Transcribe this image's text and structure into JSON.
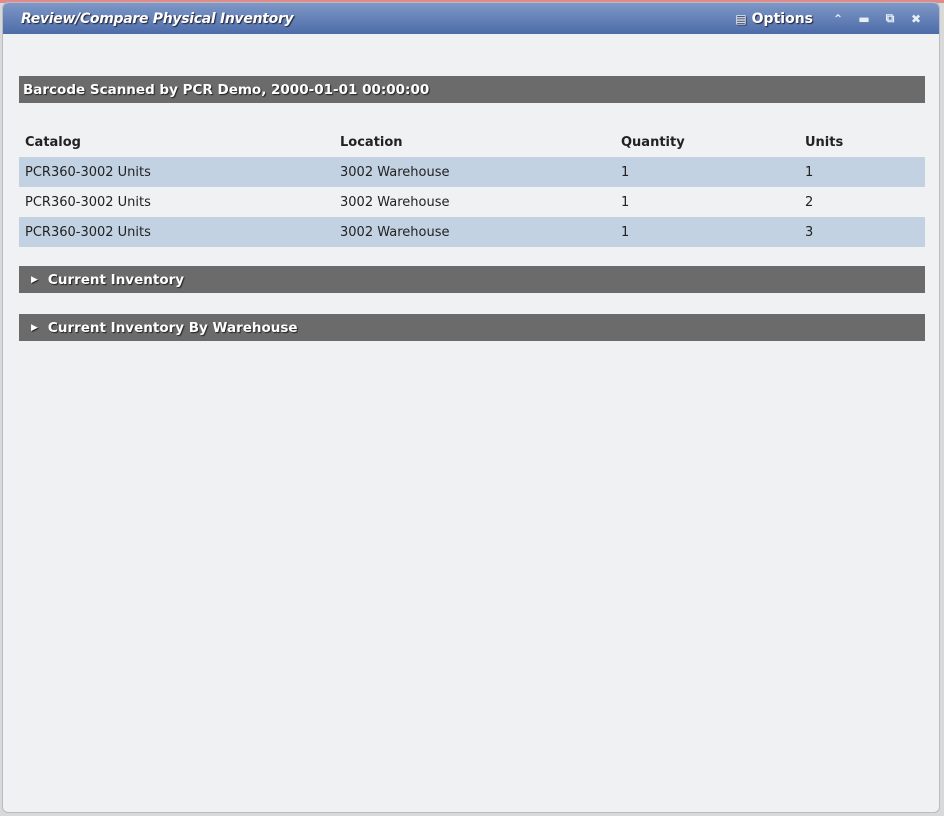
{
  "window": {
    "title": "Review/Compare Physical Inventory",
    "options_label": "Options",
    "options_icon": "list-icon",
    "controls": [
      "collapse-icon",
      "minimize-icon",
      "popout-icon",
      "close-icon"
    ]
  },
  "scan_header": "Barcode Scanned by PCR Demo, 2000-01-01 00:00:00",
  "table": {
    "columns": [
      "Catalog",
      "Location",
      "Quantity",
      "Units"
    ],
    "rows": [
      [
        "PCR360-3002 Units",
        "3002 Warehouse",
        "1",
        "1"
      ],
      [
        "PCR360-3002 Units",
        "3002 Warehouse",
        "1",
        "2"
      ],
      [
        "PCR360-3002 Units",
        "3002 Warehouse",
        "1",
        "3"
      ]
    ]
  },
  "sections": [
    {
      "label": "Current Inventory",
      "expanded": false
    },
    {
      "label": "Current Inventory By Warehouse",
      "expanded": false
    }
  ],
  "colors": {
    "titlebar": "#4d6ca9",
    "section_bar": "#6b6b6b",
    "row_alt": "#c3d2e2",
    "background": "#f0f1f3"
  }
}
